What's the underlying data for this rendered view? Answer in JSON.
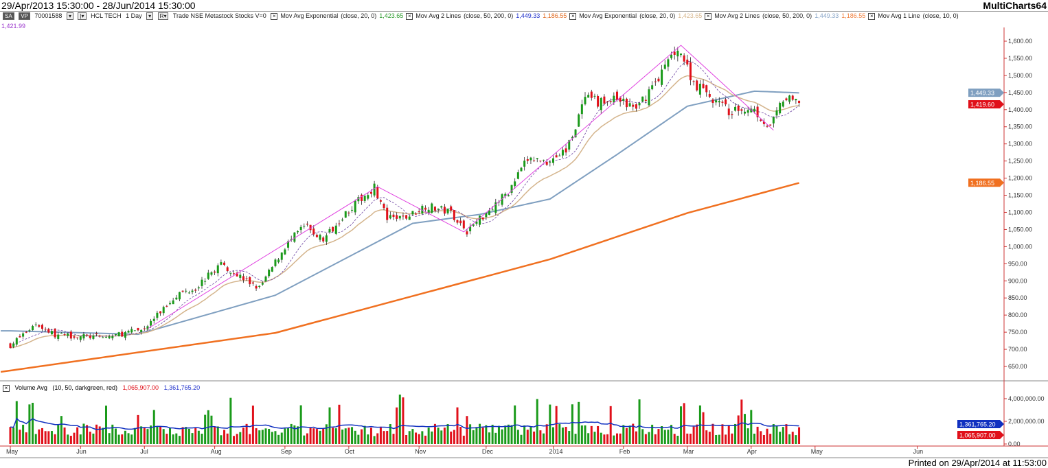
{
  "titlebar": {
    "range": "29/Apr/2013 15:30:00 - 28/Jun/2014 15:30:00",
    "app": "MultiCharts64"
  },
  "legend": {
    "sa": "SA",
    "vp": "VP",
    "account": "70001588",
    "symbol": "HCL TECH",
    "interval": "1 Day",
    "source": "Trade  NSE  Metastock  Stocks  V=0",
    "studies": [
      {
        "name": "Mov Avg Exponential",
        "params": "(close, 20, 0)",
        "values": [
          "1,423.65"
        ],
        "colors": [
          "#2e9b2e"
        ]
      },
      {
        "name": "Mov Avg 2 Lines",
        "params": "(close, 50, 200, 0)",
        "values": [
          "1,449.33",
          "1,186.55"
        ],
        "colors": [
          "#2233cc",
          "#e06a20"
        ]
      },
      {
        "name": "Mov Avg Exponential",
        "params": "(close, 20, 0)",
        "values": [
          "1,423.65"
        ],
        "colors": [
          "#d8b890"
        ]
      },
      {
        "name": "Mov Avg 2 Lines",
        "params": "(close, 50, 200, 0)",
        "values": [
          "1,449.33",
          "1,186.55"
        ],
        "colors": [
          "#8aa6c8",
          "#f08040"
        ]
      },
      {
        "name": "Mov Avg 1 Line",
        "params": "(close, 10, 0)",
        "values": [],
        "colors": []
      }
    ],
    "second_line_value": "1,421.99"
  },
  "volume_legend": {
    "name": "Volume Avg",
    "params": "(10, 50, darkgreen, red)",
    "value1": "1,065,907.00",
    "value2": "1,361,765.20"
  },
  "price_labels": {
    "ma50": "1,449.33",
    "last": "1,419.60",
    "ma200": "1,186.55"
  },
  "volume_labels": {
    "avg": "1,361,765.20",
    "last": "1,065,907.00"
  },
  "footer": "Printed on 29/Apr/2014 at 11:53:00",
  "colors": {
    "up": "#1a9a1a",
    "down": "#e0101a",
    "ema20": "#d4b48c",
    "ma50": "#7f9fc0",
    "ma200": "#f07020",
    "ma10": "#6a3fa0",
    "zigzag": "#e040e0",
    "volavg": "#1030c0"
  },
  "chart_data": {
    "type": "candlestick",
    "price_axis": {
      "min": 650,
      "max": 1600,
      "step": 50,
      "ticks": [
        "1,600.00",
        "1,550.00",
        "1,500.00",
        "1,450.00",
        "1,400.00",
        "1,350.00",
        "1,300.00",
        "1,250.00",
        "1,200.00",
        "1,150.00",
        "1,100.00",
        "1,050.00",
        "1,000.00",
        "950.00",
        "900.00",
        "850.00",
        "800.00",
        "750.00",
        "700.00",
        "650.00"
      ]
    },
    "volume_axis": {
      "min": 0,
      "max": 4500000,
      "ticks": [
        "4,000,000.00",
        "2,000,000.00",
        "0.00"
      ]
    },
    "time_axis": [
      {
        "label": "May",
        "day": 0
      },
      {
        "label": "Jun",
        "day": 22
      },
      {
        "label": "Jul",
        "day": 42
      },
      {
        "label": "Aug",
        "day": 64
      },
      {
        "label": "Sep",
        "day": 86
      },
      {
        "label": "Oct",
        "day": 106
      },
      {
        "label": "Nov",
        "day": 128
      },
      {
        "label": "Dec",
        "day": 149
      },
      {
        "label": "2014",
        "day": 170
      },
      {
        "label": "Feb",
        "day": 192
      },
      {
        "label": "Mar",
        "day": 212
      },
      {
        "label": "Apr",
        "day": 232
      },
      {
        "label": "May",
        "day": 252
      },
      {
        "label": "Jun",
        "day": 284
      }
    ],
    "bars": 248,
    "close_anchors": [
      [
        0,
        712
      ],
      [
        8,
        775
      ],
      [
        14,
        742
      ],
      [
        22,
        738
      ],
      [
        30,
        735
      ],
      [
        42,
        760
      ],
      [
        52,
        860
      ],
      [
        58,
        880
      ],
      [
        66,
        950
      ],
      [
        74,
        900
      ],
      [
        78,
        878
      ],
      [
        86,
        1000
      ],
      [
        92,
        1060
      ],
      [
        98,
        1020
      ],
      [
        104,
        1090
      ],
      [
        114,
        1175
      ],
      [
        118,
        1080
      ],
      [
        124,
        1085
      ],
      [
        130,
        1120
      ],
      [
        138,
        1100
      ],
      [
        143,
        1045
      ],
      [
        150,
        1110
      ],
      [
        156,
        1160
      ],
      [
        162,
        1255
      ],
      [
        168,
        1250
      ],
      [
        174,
        1280
      ],
      [
        180,
        1430
      ],
      [
        186,
        1420
      ],
      [
        190,
        1430
      ],
      [
        196,
        1400
      ],
      [
        204,
        1510
      ],
      [
        209,
        1585
      ],
      [
        214,
        1480
      ],
      [
        220,
        1430
      ],
      [
        226,
        1390
      ],
      [
        232,
        1410
      ],
      [
        238,
        1345
      ],
      [
        242,
        1430
      ],
      [
        247,
        1420
      ]
    ],
    "ma50_anchors": [
      [
        0,
        754
      ],
      [
        40,
        744
      ],
      [
        83,
        858
      ],
      [
        126,
        1068
      ],
      [
        147,
        1094
      ],
      [
        169,
        1139
      ],
      [
        190,
        1269
      ],
      [
        212,
        1410
      ],
      [
        233,
        1454
      ],
      [
        247,
        1449
      ]
    ],
    "ma200_anchors": [
      [
        0,
        638
      ],
      [
        83,
        748
      ],
      [
        169,
        963
      ],
      [
        212,
        1098
      ],
      [
        247,
        1186
      ]
    ],
    "zigzag": [
      [
        43,
        760
      ],
      [
        115,
        1175
      ],
      [
        142,
        1043
      ],
      [
        210,
        1588
      ],
      [
        239,
        1340
      ]
    ]
  }
}
